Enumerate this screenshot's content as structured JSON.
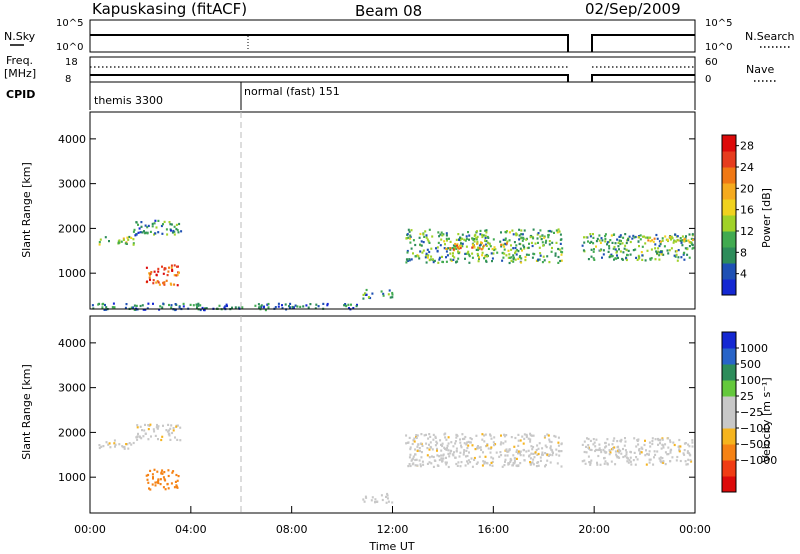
{
  "header": {
    "station": "Kapuskasing (fitACF)",
    "beam": "Beam 08",
    "date": "02/Sep/2009"
  },
  "top_panels": {
    "nsky_label": "N.Sky",
    "nsky_ticks": [
      "10^5",
      "10^0"
    ],
    "nsearch_label": "N.Search",
    "nsearch_ticks": [
      "10^5",
      "10^0"
    ],
    "freq_label": "Freq.",
    "freq_unit": "[MHz]",
    "freq_ticks": [
      "18",
      "8"
    ],
    "nave_label": "Nave",
    "nave_ticks": [
      "60",
      "0"
    ],
    "cpid_label": "CPID",
    "modes": [
      {
        "name": "themis 3300",
        "start_hour": 0,
        "end_hour": 6
      },
      {
        "name": "normal (fast) 151",
        "start_hour": 6,
        "end_hour": 24
      }
    ]
  },
  "colors": {
    "power_scale": [
      "#1428d2",
      "#1e50b4",
      "#2d8c5a",
      "#41aa50",
      "#a0d228",
      "#f0d21e",
      "#f5aa1e",
      "#f07814",
      "#e63c1e",
      "#dc0a0a"
    ],
    "velocity_scale": [
      "#dc0a0a",
      "#f03c14",
      "#f58214",
      "#f5b41e",
      "#c8c8c8",
      "#c8c8c8",
      "#64c83c",
      "#2d8c5a",
      "#2864c8",
      "#1428d2"
    ],
    "ground_scatter": "#c8c8c8"
  },
  "chart_data": [
    {
      "type": "heatmap",
      "name": "power",
      "ylabel": "Slant Range [km]",
      "xlabel": "",
      "xlim": [
        0,
        24
      ],
      "ylim": [
        200,
        4600
      ],
      "yticks": [
        "1000",
        "2000",
        "3000",
        "4000"
      ],
      "colorbar": {
        "label": "Power [dB]",
        "ticks": [
          "4",
          "8",
          "12",
          "16",
          "20",
          "24",
          "28"
        ],
        "range": [
          0,
          30
        ]
      },
      "regions": [
        {
          "t0": 0.3,
          "t1": 1.7,
          "r0": 1650,
          "r1": 1850,
          "level": 14
        },
        {
          "t0": 1.7,
          "t1": 3.6,
          "r0": 1850,
          "r1": 2200,
          "level": 8
        },
        {
          "t0": 2.2,
          "t1": 3.5,
          "r0": 750,
          "r1": 1200,
          "level": 24
        },
        {
          "t0": 10.8,
          "t1": 12.0,
          "r0": 450,
          "r1": 650,
          "level": 8
        },
        {
          "t0": 0.0,
          "t1": 11.0,
          "r0": 200,
          "r1": 350,
          "level": 6
        },
        {
          "t0": 12.5,
          "t1": 18.7,
          "r0": 1250,
          "r1": 2000,
          "level": 10
        },
        {
          "t0": 14.0,
          "t1": 16.5,
          "r0": 1550,
          "r1": 1700,
          "level": 20
        },
        {
          "t0": 19.5,
          "t1": 23.9,
          "r0": 1300,
          "r1": 1900,
          "level": 10
        },
        {
          "t0": 21.5,
          "t1": 23.9,
          "r0": 1700,
          "r1": 1850,
          "level": 18
        }
      ]
    },
    {
      "type": "heatmap",
      "name": "velocity",
      "ylabel": "Slant Range [km]",
      "xlabel": "Time UT",
      "xlim": [
        0,
        24
      ],
      "ylim": [
        200,
        4600
      ],
      "xticks": [
        "00:00",
        "04:00",
        "08:00",
        "12:00",
        "16:00",
        "20:00",
        "00:00"
      ],
      "yticks": [
        "1000",
        "2000",
        "3000",
        "4000"
      ],
      "colorbar": {
        "label": "Velocity [m s⁻¹]",
        "ticks": [
          "1000",
          "500",
          "100",
          "25",
          "−25",
          "−100",
          "−500",
          "−1000"
        ]
      },
      "regions": [
        {
          "t0": 0.3,
          "t1": 1.7,
          "r0": 1650,
          "r1": 1850,
          "level": 0
        },
        {
          "t0": 1.7,
          "t1": 3.6,
          "r0": 1850,
          "r1": 2200,
          "level": 0
        },
        {
          "t0": 2.2,
          "t1": 3.5,
          "r0": 750,
          "r1": 1200,
          "level": -200
        },
        {
          "t0": 10.8,
          "t1": 12.0,
          "r0": 450,
          "r1": 650,
          "level": 0
        },
        {
          "t0": 12.5,
          "t1": 18.7,
          "r0": 1250,
          "r1": 2000,
          "level": 0
        },
        {
          "t0": 19.5,
          "t1": 23.9,
          "r0": 1300,
          "r1": 1900,
          "level": 0
        }
      ]
    }
  ]
}
